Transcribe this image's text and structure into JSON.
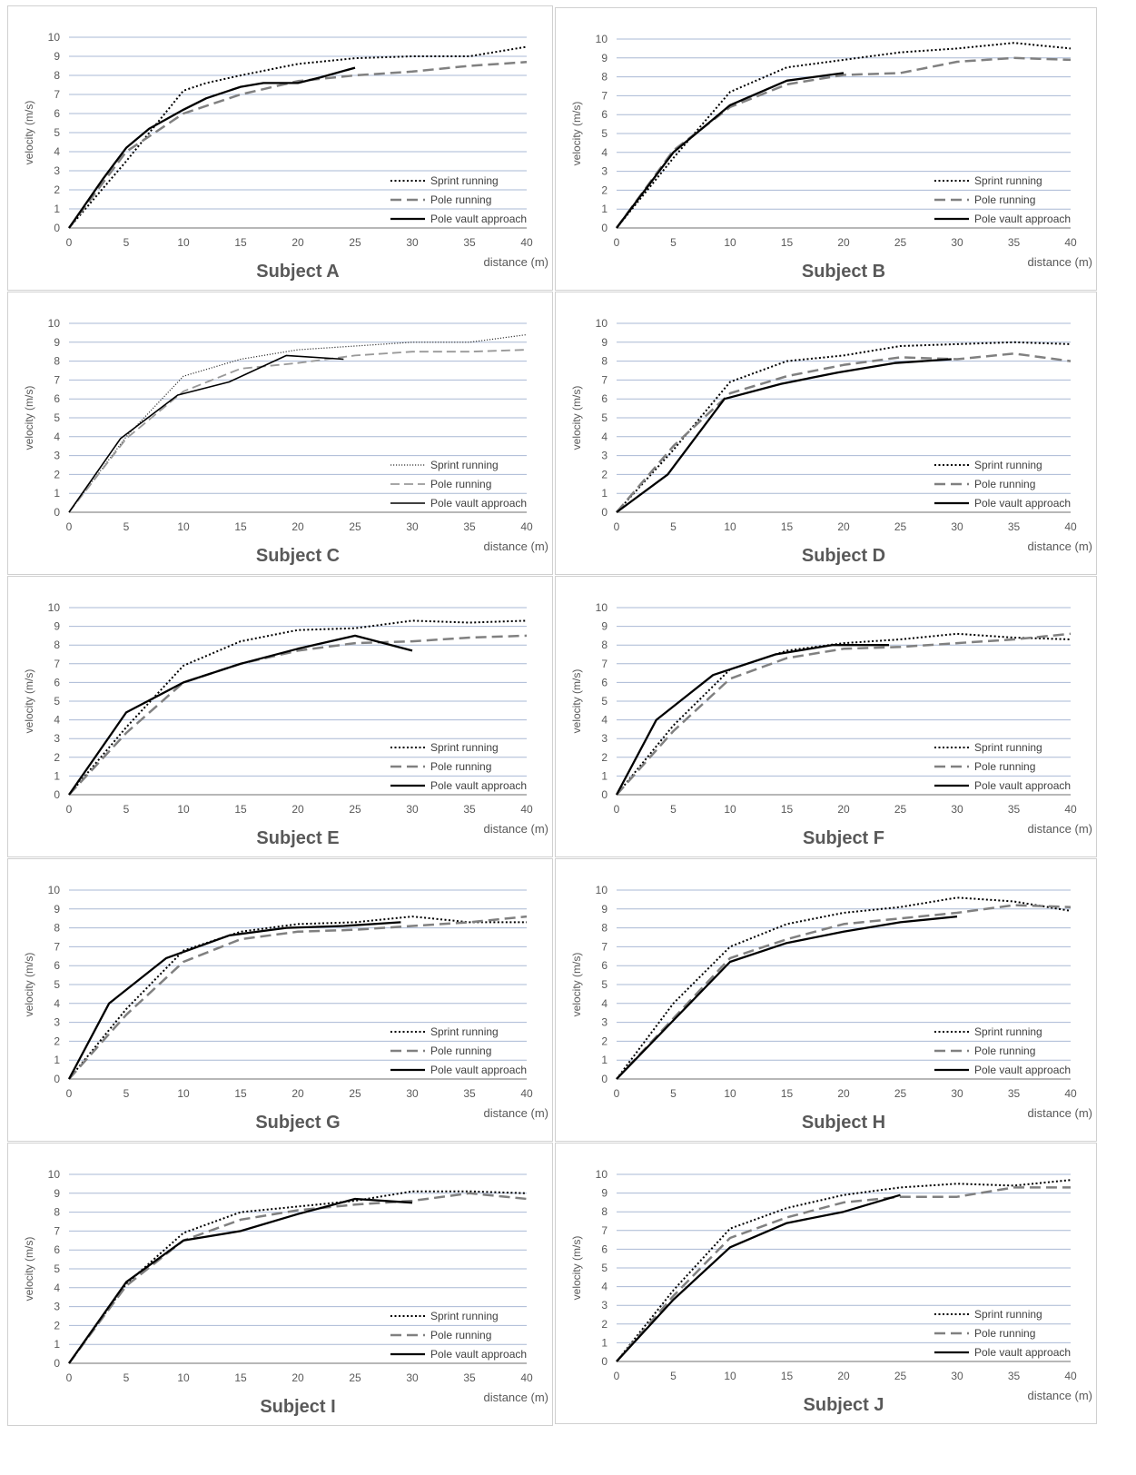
{
  "figure": {
    "series_colors": {
      "sprint": "#000000",
      "pole": "#808080",
      "vault": "#000000"
    },
    "grid_color": "#a9b8d4"
  },
  "chart_data": [
    {
      "type": "line",
      "title": "Subject A",
      "xlabel": "distance (m)",
      "ylabel": "velocity (m/s)",
      "xlim": [
        0,
        40
      ],
      "ylim": [
        0,
        10
      ],
      "grid": "horizontal",
      "legend": "bottom-right",
      "x_ticks": [
        "0",
        "5",
        "10",
        "15",
        "20",
        "25",
        "30",
        "35",
        "40"
      ],
      "y_ticks": [
        "0",
        "1",
        "2",
        "3",
        "4",
        "5",
        "6",
        "7",
        "8",
        "9",
        "10"
      ],
      "series": [
        {
          "name": "Sprint running",
          "style": "dotted",
          "x": [
            0,
            5,
            10,
            12,
            15,
            20,
            25,
            30,
            35,
            40
          ],
          "y": [
            0,
            3.5,
            7.2,
            7.6,
            8.0,
            8.6,
            8.9,
            9.0,
            9.0,
            9.5
          ]
        },
        {
          "name": "Pole running",
          "style": "dashed",
          "x": [
            0,
            5,
            10,
            15,
            20,
            25,
            30,
            35,
            40
          ],
          "y": [
            0,
            4.0,
            6.0,
            7.0,
            7.7,
            8.0,
            8.2,
            8.5,
            8.7
          ]
        },
        {
          "name": "Pole vault approach",
          "style": "solid",
          "x": [
            0,
            3,
            5,
            7,
            10,
            12,
            15,
            17,
            20,
            22,
            25
          ],
          "y": [
            0,
            2.6,
            4.2,
            5.2,
            6.2,
            6.8,
            7.4,
            7.6,
            7.6,
            7.9,
            8.4
          ]
        }
      ]
    },
    {
      "type": "line",
      "title": "Subject B",
      "xlabel": "distance (m)",
      "ylabel": "velocity (m/s)",
      "xlim": [
        0,
        40
      ],
      "ylim": [
        0,
        10
      ],
      "grid": "horizontal",
      "legend": "bottom-right",
      "x_ticks": [
        "0",
        "5",
        "10",
        "15",
        "20",
        "25",
        "30",
        "35",
        "40"
      ],
      "y_ticks": [
        "0",
        "1",
        "2",
        "3",
        "4",
        "5",
        "6",
        "7",
        "8",
        "9",
        "10"
      ],
      "series": [
        {
          "name": "Sprint running",
          "style": "dotted",
          "x": [
            0,
            5,
            10,
            15,
            20,
            25,
            30,
            35,
            40
          ],
          "y": [
            0,
            3.7,
            7.2,
            8.5,
            8.9,
            9.3,
            9.5,
            9.8,
            9.5
          ]
        },
        {
          "name": "Pole running",
          "style": "dashed",
          "x": [
            0,
            5,
            10,
            15,
            20,
            25,
            30,
            35,
            40
          ],
          "y": [
            0,
            4.1,
            6.4,
            7.6,
            8.1,
            8.2,
            8.8,
            9.0,
            8.9
          ]
        },
        {
          "name": "Pole vault approach",
          "style": "solid",
          "x": [
            0,
            5,
            10,
            15,
            20
          ],
          "y": [
            0,
            4.0,
            6.5,
            7.8,
            8.2
          ]
        }
      ]
    },
    {
      "type": "line",
      "title": "Subject C",
      "xlabel": "distance (m)",
      "ylabel": "velocity (m/s)",
      "xlim": [
        0,
        40
      ],
      "ylim": [
        0,
        10
      ],
      "grid": "horizontal",
      "legend": "bottom-right",
      "x_ticks": [
        "0",
        "5",
        "10",
        "15",
        "20",
        "25",
        "30",
        "35",
        "40"
      ],
      "y_ticks": [
        "0",
        "1",
        "2",
        "3",
        "4",
        "5",
        "6",
        "7",
        "8",
        "9",
        "10"
      ],
      "series": [
        {
          "name": "Sprint running",
          "style": "dotted-fine",
          "x": [
            0,
            5,
            10,
            15,
            20,
            25,
            30,
            35,
            40
          ],
          "y": [
            0,
            4.0,
            7.2,
            8.1,
            8.6,
            8.8,
            9.0,
            9.0,
            9.4
          ]
        },
        {
          "name": "Pole running",
          "style": "dashed-light",
          "x": [
            0,
            5,
            10,
            15,
            20,
            25,
            30,
            35,
            40
          ],
          "y": [
            0,
            3.9,
            6.4,
            7.6,
            7.9,
            8.3,
            8.5,
            8.5,
            8.6
          ]
        },
        {
          "name": "Pole vault approach",
          "style": "solid-thin",
          "x": [
            0,
            4.5,
            9.5,
            14,
            19,
            24
          ],
          "y": [
            0,
            3.9,
            6.2,
            6.9,
            8.3,
            8.1
          ]
        }
      ]
    },
    {
      "type": "line",
      "title": "Subject D",
      "xlabel": "distance (m)",
      "ylabel": "velocity (m/s)",
      "xlim": [
        0,
        40
      ],
      "ylim": [
        0,
        10
      ],
      "grid": "horizontal",
      "legend": "bottom-right",
      "x_ticks": [
        "0",
        "5",
        "10",
        "15",
        "20",
        "25",
        "30",
        "35",
        "40"
      ],
      "y_ticks": [
        "0",
        "1",
        "2",
        "3",
        "4",
        "5",
        "6",
        "7",
        "8",
        "9",
        "10"
      ],
      "series": [
        {
          "name": "Sprint running",
          "style": "dotted",
          "x": [
            0,
            5,
            10,
            15,
            20,
            25,
            30,
            35,
            40
          ],
          "y": [
            0,
            3.3,
            6.9,
            8.0,
            8.3,
            8.8,
            8.9,
            9.0,
            8.9
          ]
        },
        {
          "name": "Pole running",
          "style": "dashed",
          "x": [
            0,
            5,
            10,
            15,
            20,
            25,
            30,
            35,
            40
          ],
          "y": [
            0,
            3.5,
            6.3,
            7.2,
            7.8,
            8.2,
            8.1,
            8.4,
            8.0
          ]
        },
        {
          "name": "Pole vault approach",
          "style": "solid",
          "x": [
            0,
            4.5,
            9.5,
            14.5,
            19.5,
            24.5,
            29.5
          ],
          "y": [
            0,
            2.0,
            6.0,
            6.8,
            7.4,
            7.9,
            8.1
          ]
        }
      ]
    },
    {
      "type": "line",
      "title": "Subject E",
      "xlabel": "distance (m)",
      "ylabel": "velocity (m/s)",
      "xlim": [
        0,
        40
      ],
      "ylim": [
        0,
        10
      ],
      "grid": "horizontal",
      "legend": "bottom-right",
      "x_ticks": [
        "0",
        "5",
        "10",
        "15",
        "20",
        "25",
        "30",
        "35",
        "40"
      ],
      "y_ticks": [
        "0",
        "1",
        "2",
        "3",
        "4",
        "5",
        "6",
        "7",
        "8",
        "9",
        "10"
      ],
      "series": [
        {
          "name": "Sprint running",
          "style": "dotted",
          "x": [
            0,
            5,
            10,
            15,
            20,
            25,
            30,
            35,
            40
          ],
          "y": [
            0,
            3.6,
            6.9,
            8.2,
            8.8,
            8.9,
            9.3,
            9.2,
            9.3
          ]
        },
        {
          "name": "Pole running",
          "style": "dashed",
          "x": [
            0,
            5,
            10,
            15,
            20,
            25,
            30,
            35,
            40
          ],
          "y": [
            0,
            3.3,
            6.0,
            7.0,
            7.7,
            8.1,
            8.2,
            8.4,
            8.5
          ]
        },
        {
          "name": "Pole vault approach",
          "style": "solid",
          "x": [
            0,
            5,
            10,
            15,
            20,
            25,
            30
          ],
          "y": [
            0,
            4.4,
            6.0,
            7.0,
            7.8,
            8.5,
            7.7
          ]
        }
      ]
    },
    {
      "type": "line",
      "title": "Subject F",
      "xlabel": "distance (m)",
      "ylabel": "velocity (m/s)",
      "xlim": [
        0,
        40
      ],
      "ylim": [
        0,
        10
      ],
      "grid": "horizontal",
      "legend": "bottom-right",
      "x_ticks": [
        "0",
        "5",
        "10",
        "15",
        "20",
        "25",
        "30",
        "35",
        "40"
      ],
      "y_ticks": [
        "0",
        "1",
        "2",
        "3",
        "4",
        "5",
        "6",
        "7",
        "8",
        "9",
        "10"
      ],
      "series": [
        {
          "name": "Sprint running",
          "style": "dotted",
          "x": [
            0,
            5,
            10,
            15,
            20,
            25,
            30,
            35,
            40
          ],
          "y": [
            0,
            3.7,
            6.7,
            7.7,
            8.1,
            8.3,
            8.6,
            8.4,
            8.3
          ]
        },
        {
          "name": "Pole running",
          "style": "dashed",
          "x": [
            0,
            5,
            10,
            15,
            20,
            25,
            30,
            35,
            40
          ],
          "y": [
            0,
            3.4,
            6.2,
            7.3,
            7.8,
            7.9,
            8.1,
            8.3,
            8.6
          ]
        },
        {
          "name": "Pole vault approach",
          "style": "solid",
          "x": [
            0,
            3.5,
            8.5,
            14,
            19,
            24
          ],
          "y": [
            0,
            4.0,
            6.4,
            7.5,
            8.0,
            8.0
          ]
        }
      ]
    },
    {
      "type": "line",
      "title": "Subject G",
      "xlabel": "distance (m)",
      "ylabel": "velocity (m/s)",
      "xlim": [
        0,
        40
      ],
      "ylim": [
        0,
        10
      ],
      "grid": "horizontal",
      "legend": "bottom-right",
      "x_ticks": [
        "0",
        "5",
        "10",
        "15",
        "20",
        "25",
        "30",
        "35",
        "40"
      ],
      "y_ticks": [
        "0",
        "1",
        "2",
        "3",
        "4",
        "5",
        "6",
        "7",
        "8",
        "9",
        "10"
      ],
      "series": [
        {
          "name": "Sprint running",
          "style": "dotted",
          "x": [
            0,
            5,
            10,
            15,
            20,
            25,
            30,
            35,
            40
          ],
          "y": [
            0,
            3.7,
            6.8,
            7.8,
            8.2,
            8.3,
            8.6,
            8.3,
            8.3
          ]
        },
        {
          "name": "Pole running",
          "style": "dashed",
          "x": [
            0,
            5,
            10,
            15,
            20,
            25,
            30,
            35,
            40
          ],
          "y": [
            0,
            3.4,
            6.2,
            7.4,
            7.8,
            7.9,
            8.1,
            8.3,
            8.6
          ]
        },
        {
          "name": "Pole vault approach",
          "style": "solid",
          "x": [
            0,
            3.5,
            8.5,
            14,
            19,
            24,
            29
          ],
          "y": [
            0,
            4.0,
            6.4,
            7.6,
            8.0,
            8.1,
            8.3
          ]
        }
      ]
    },
    {
      "type": "line",
      "title": "Subject H",
      "xlabel": "distance (m)",
      "ylabel": "velocity (m/s)",
      "xlim": [
        0,
        40
      ],
      "ylim": [
        0,
        10
      ],
      "grid": "horizontal",
      "legend": "bottom-right",
      "x_ticks": [
        "0",
        "5",
        "10",
        "15",
        "20",
        "25",
        "30",
        "35",
        "40"
      ],
      "y_ticks": [
        "0",
        "1",
        "2",
        "3",
        "4",
        "5",
        "6",
        "7",
        "8",
        "9",
        "10"
      ],
      "series": [
        {
          "name": "Sprint running",
          "style": "dotted",
          "x": [
            0,
            5,
            10,
            15,
            20,
            25,
            30,
            35,
            40
          ],
          "y": [
            0,
            4.0,
            7.0,
            8.2,
            8.8,
            9.1,
            9.6,
            9.4,
            8.9
          ]
        },
        {
          "name": "Pole running",
          "style": "dashed",
          "x": [
            0,
            5,
            10,
            15,
            20,
            25,
            30,
            35,
            40
          ],
          "y": [
            0,
            3.2,
            6.4,
            7.4,
            8.2,
            8.5,
            8.8,
            9.2,
            9.1
          ]
        },
        {
          "name": "Pole vault approach",
          "style": "solid",
          "x": [
            0,
            5,
            10,
            15,
            20,
            25,
            30
          ],
          "y": [
            0,
            3.1,
            6.2,
            7.2,
            7.8,
            8.3,
            8.6
          ]
        }
      ]
    },
    {
      "type": "line",
      "title": "Subject I",
      "xlabel": "distance (m)",
      "ylabel": "velocity (m/s)",
      "xlim": [
        0,
        40
      ],
      "ylim": [
        0,
        10
      ],
      "grid": "horizontal",
      "legend": "bottom-right",
      "x_ticks": [
        "0",
        "5",
        "10",
        "15",
        "20",
        "25",
        "30",
        "35",
        "40"
      ],
      "y_ticks": [
        "0",
        "1",
        "2",
        "3",
        "4",
        "5",
        "6",
        "7",
        "8",
        "9",
        "10"
      ],
      "series": [
        {
          "name": "Sprint running",
          "style": "dotted",
          "x": [
            0,
            5,
            10,
            15,
            20,
            25,
            30,
            35,
            40
          ],
          "y": [
            0,
            4.2,
            6.9,
            8.0,
            8.3,
            8.6,
            9.1,
            9.1,
            9.0
          ]
        },
        {
          "name": "Pole running",
          "style": "dashed",
          "x": [
            0,
            5,
            10,
            15,
            20,
            25,
            30,
            35,
            40
          ],
          "y": [
            0,
            4.1,
            6.5,
            7.6,
            8.1,
            8.4,
            8.6,
            9.0,
            8.7
          ]
        },
        {
          "name": "Pole vault approach",
          "style": "solid",
          "x": [
            0,
            5,
            10,
            15,
            20,
            25,
            30
          ],
          "y": [
            0,
            4.3,
            6.5,
            7.0,
            7.9,
            8.7,
            8.5
          ]
        }
      ]
    },
    {
      "type": "line",
      "title": "Subject J",
      "xlabel": "distance (m)",
      "ylabel": "velocity (m/s)",
      "xlim": [
        0,
        40
      ],
      "ylim": [
        0,
        10
      ],
      "grid": "horizontal",
      "legend": "bottom-right",
      "x_ticks": [
        "0",
        "5",
        "10",
        "15",
        "20",
        "25",
        "30",
        "35",
        "40"
      ],
      "y_ticks": [
        "0",
        "1",
        "2",
        "3",
        "4",
        "5",
        "6",
        "7",
        "8",
        "9",
        "10"
      ],
      "series": [
        {
          "name": "Sprint running",
          "style": "dotted",
          "x": [
            0,
            5,
            10,
            15,
            20,
            25,
            30,
            35,
            40
          ],
          "y": [
            0,
            3.8,
            7.1,
            8.2,
            8.9,
            9.3,
            9.5,
            9.4,
            9.7
          ]
        },
        {
          "name": "Pole running",
          "style": "dashed",
          "x": [
            0,
            5,
            10,
            15,
            20,
            25,
            30,
            35,
            40
          ],
          "y": [
            0,
            3.5,
            6.6,
            7.7,
            8.5,
            8.8,
            8.8,
            9.3,
            9.3
          ]
        },
        {
          "name": "Pole vault approach",
          "style": "solid",
          "x": [
            0,
            5,
            10,
            15,
            20,
            25
          ],
          "y": [
            0,
            3.3,
            6.1,
            7.4,
            8.0,
            8.9
          ]
        }
      ]
    }
  ]
}
